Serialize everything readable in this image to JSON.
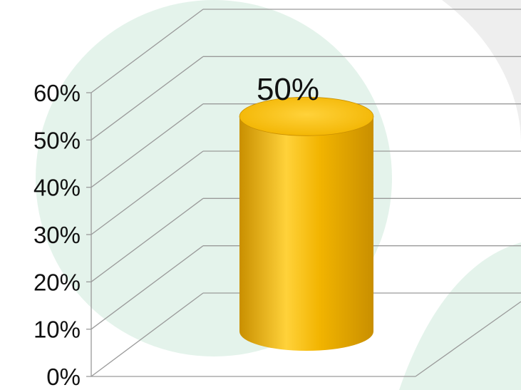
{
  "chart_data": {
    "type": "bar",
    "style": "3d-cylinder",
    "categories": [
      ""
    ],
    "values": [
      0.5
    ],
    "data_labels": [
      "50%"
    ],
    "ylim": [
      0,
      0.6
    ],
    "yticks": [
      0,
      0.1,
      0.2,
      0.3,
      0.4,
      0.5,
      0.6
    ],
    "ytick_labels": [
      "0%",
      "10%",
      "20%",
      "30%",
      "40%",
      "50%",
      "60%"
    ],
    "grid": true,
    "legend": "none",
    "colors": {
      "bar": "#F2B400",
      "bar_light": "#FFD23A",
      "bar_dark": "#C98F00",
      "gridline": "#9A9A9A",
      "watermark": "#CDEADB"
    }
  }
}
